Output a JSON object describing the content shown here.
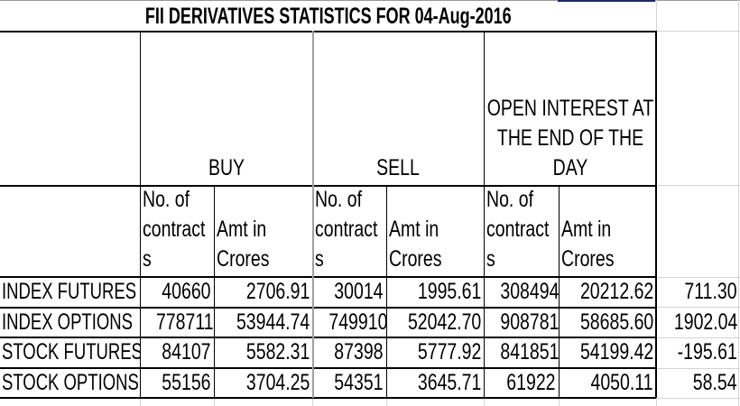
{
  "title": "FII DERIVATIVES STATISTICS FOR 04-Aug-2016",
  "groups": {
    "buy": "BUY",
    "sell": "SELL",
    "oi": [
      "OPEN INTEREST AT",
      "THE END OF THE",
      "DAY"
    ]
  },
  "subheaders": {
    "contracts": [
      "No. of",
      "contract",
      "s"
    ],
    "amount": [
      "Amt in",
      "Crores"
    ]
  },
  "rows": [
    {
      "label": "INDEX FUTURES",
      "buy_contracts": "40660",
      "buy_amt": "2706.91",
      "sell_contracts": "30014",
      "sell_amt": "1995.61",
      "oi_contracts": "308494",
      "oi_amt": "20212.62",
      "net": "711.30"
    },
    {
      "label": "INDEX OPTIONS",
      "buy_contracts": "778711",
      "buy_amt": "53944.74",
      "sell_contracts": "749910",
      "sell_amt": "52042.70",
      "oi_contracts": "908781",
      "oi_amt": "58685.60",
      "net": "1902.04"
    },
    {
      "label": "STOCK FUTURES",
      "buy_contracts": "84107",
      "buy_amt": "5582.31",
      "sell_contracts": "87398",
      "sell_amt": "5777.92",
      "oi_contracts": "841851",
      "oi_amt": "54199.42",
      "net": "-195.61"
    },
    {
      "label": "STOCK OPTIONS",
      "buy_contracts": "55156",
      "buy_amt": "3704.25",
      "sell_contracts": "54351",
      "sell_amt": "3645.71",
      "oi_contracts": "61922",
      "oi_amt": "4050.11",
      "net": "58.54"
    }
  ]
}
